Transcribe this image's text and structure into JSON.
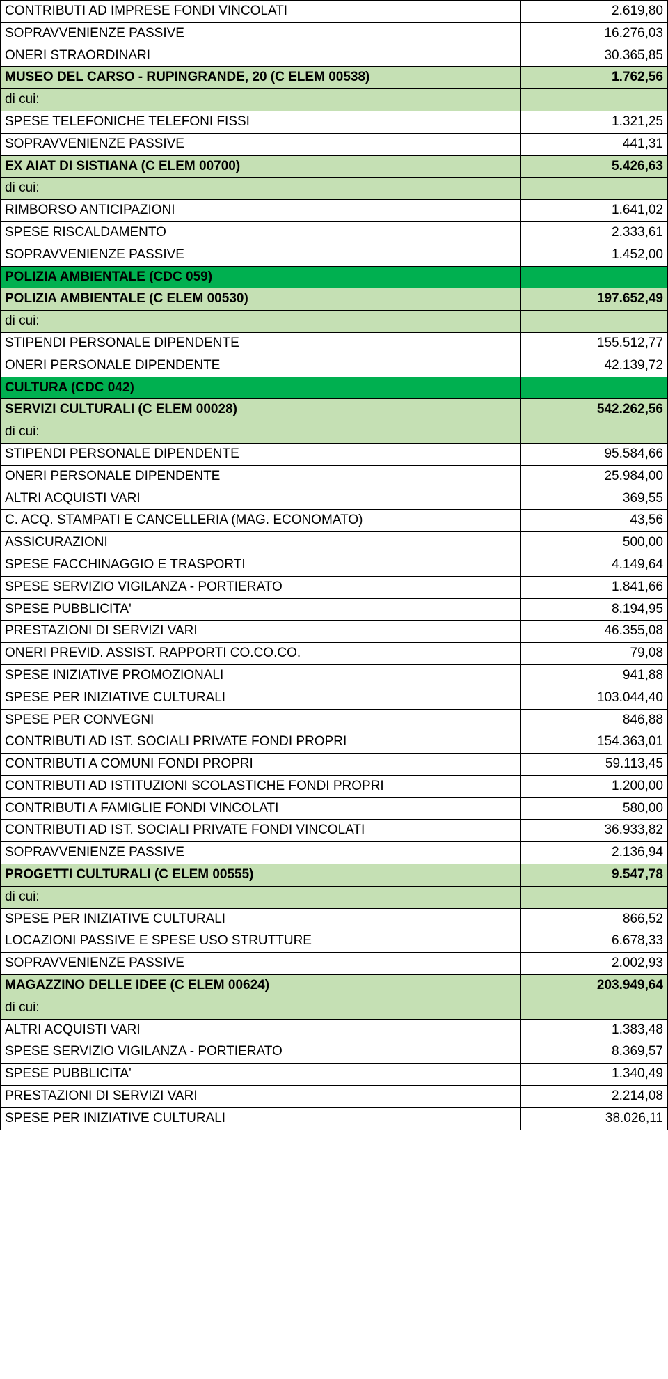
{
  "rows": [
    {
      "cls": "w",
      "label": "CONTRIBUTI AD IMPRESE FONDI VINCOLATI",
      "value": "2.619,80"
    },
    {
      "cls": "w",
      "label": "SOPRAVVENIENZE PASSIVE",
      "value": "16.276,03"
    },
    {
      "cls": "w",
      "label": "ONERI STRAORDINARI",
      "value": "30.365,85"
    },
    {
      "cls": "g b",
      "label": "MUSEO DEL CARSO - RUPINGRANDE, 20 (C ELEM 00538)",
      "value": "1.762,56"
    },
    {
      "cls": "g",
      "label": "di cui:",
      "value": ""
    },
    {
      "cls": "w",
      "label": "SPESE TELEFONICHE TELEFONI FISSI",
      "value": "1.321,25"
    },
    {
      "cls": "w",
      "label": "SOPRAVVENIENZE PASSIVE",
      "value": "441,31"
    },
    {
      "cls": "g b",
      "label": "EX AIAT DI SISTIANA (C ELEM 00700)",
      "value": "5.426,63"
    },
    {
      "cls": "g",
      "label": "di cui:",
      "value": ""
    },
    {
      "cls": "w",
      "label": "RIMBORSO ANTICIPAZIONI",
      "value": "1.641,02"
    },
    {
      "cls": "w",
      "label": "SPESE RISCALDAMENTO",
      "value": "2.333,61"
    },
    {
      "cls": "w",
      "label": "SOPRAVVENIENZE PASSIVE",
      "value": "1.452,00"
    },
    {
      "cls": "bg b",
      "label": "POLIZIA AMBIENTALE (CDC 059)",
      "value": ""
    },
    {
      "cls": "g b",
      "label": "POLIZIA AMBIENTALE (C ELEM 00530)",
      "value": "197.652,49"
    },
    {
      "cls": "g",
      "label": "di cui:",
      "value": ""
    },
    {
      "cls": "w",
      "label": "STIPENDI PERSONALE DIPENDENTE",
      "value": "155.512,77"
    },
    {
      "cls": "w",
      "label": "ONERI PERSONALE DIPENDENTE",
      "value": "42.139,72"
    },
    {
      "cls": "bg b",
      "label": "CULTURA (CDC 042)",
      "value": ""
    },
    {
      "cls": "g b",
      "label": "SERVIZI CULTURALI (C ELEM 00028)",
      "value": "542.262,56"
    },
    {
      "cls": "g",
      "label": "di cui:",
      "value": ""
    },
    {
      "cls": "w",
      "label": "STIPENDI PERSONALE DIPENDENTE",
      "value": "95.584,66"
    },
    {
      "cls": "w",
      "label": "ONERI PERSONALE DIPENDENTE",
      "value": "25.984,00"
    },
    {
      "cls": "w",
      "label": "ALTRI ACQUISTI VARI",
      "value": "369,55"
    },
    {
      "cls": "w",
      "label": "C. ACQ. STAMPATI E CANCELLERIA (MAG. ECONOMATO)",
      "value": "43,56"
    },
    {
      "cls": "w",
      "label": "ASSICURAZIONI",
      "value": "500,00"
    },
    {
      "cls": "w",
      "label": "SPESE FACCHINAGGIO E TRASPORTI",
      "value": "4.149,64"
    },
    {
      "cls": "w",
      "label": "SPESE SERVIZIO VIGILANZA - PORTIERATO",
      "value": "1.841,66"
    },
    {
      "cls": "w",
      "label": "SPESE PUBBLICITA'",
      "value": "8.194,95"
    },
    {
      "cls": "w",
      "label": "PRESTAZIONI DI SERVIZI VARI",
      "value": "46.355,08"
    },
    {
      "cls": "w",
      "label": "ONERI PREVID. ASSIST. RAPPORTI CO.CO.CO.",
      "value": "79,08"
    },
    {
      "cls": "w",
      "label": "SPESE INIZIATIVE PROMOZIONALI",
      "value": "941,88"
    },
    {
      "cls": "w",
      "label": "SPESE PER INIZIATIVE CULTURALI",
      "value": "103.044,40"
    },
    {
      "cls": "w",
      "label": "SPESE PER CONVEGNI",
      "value": "846,88"
    },
    {
      "cls": "w",
      "label": "CONTRIBUTI AD IST. SOCIALI PRIVATE FONDI PROPRI",
      "value": "154.363,01"
    },
    {
      "cls": "w",
      "label": "CONTRIBUTI A COMUNI FONDI PROPRI",
      "value": "59.113,45"
    },
    {
      "cls": "w",
      "label": "CONTRIBUTI AD ISTITUZIONI SCOLASTICHE FONDI PROPRI",
      "value": "1.200,00"
    },
    {
      "cls": "w",
      "label": "CONTRIBUTI A FAMIGLIE FONDI VINCOLATI",
      "value": "580,00"
    },
    {
      "cls": "w",
      "label": "CONTRIBUTI AD IST. SOCIALI PRIVATE FONDI VINCOLATI",
      "value": "36.933,82"
    },
    {
      "cls": "w",
      "label": "SOPRAVVENIENZE PASSIVE",
      "value": "2.136,94"
    },
    {
      "cls": "g b",
      "label": "PROGETTI CULTURALI (C ELEM 00555)",
      "value": "9.547,78"
    },
    {
      "cls": "g",
      "label": "di cui:",
      "value": ""
    },
    {
      "cls": "w",
      "label": "SPESE PER INIZIATIVE CULTURALI",
      "value": "866,52"
    },
    {
      "cls": "w",
      "label": "LOCAZIONI PASSIVE E SPESE USO STRUTTURE",
      "value": "6.678,33"
    },
    {
      "cls": "w",
      "label": "SOPRAVVENIENZE PASSIVE",
      "value": "2.002,93"
    },
    {
      "cls": "g b",
      "label": "MAGAZZINO DELLE IDEE (C ELEM 00624)",
      "value": "203.949,64"
    },
    {
      "cls": "g",
      "label": "di cui:",
      "value": ""
    },
    {
      "cls": "w",
      "label": "ALTRI ACQUISTI VARI",
      "value": "1.383,48"
    },
    {
      "cls": "w",
      "label": "SPESE SERVIZIO VIGILANZA - PORTIERATO",
      "value": "8.369,57"
    },
    {
      "cls": "w",
      "label": "SPESE PUBBLICITA'",
      "value": "1.340,49"
    },
    {
      "cls": "w",
      "label": "PRESTAZIONI DI SERVIZI VARI",
      "value": "2.214,08"
    },
    {
      "cls": "w",
      "label": "SPESE PER INIZIATIVE CULTURALI",
      "value": "38.026,11"
    }
  ]
}
